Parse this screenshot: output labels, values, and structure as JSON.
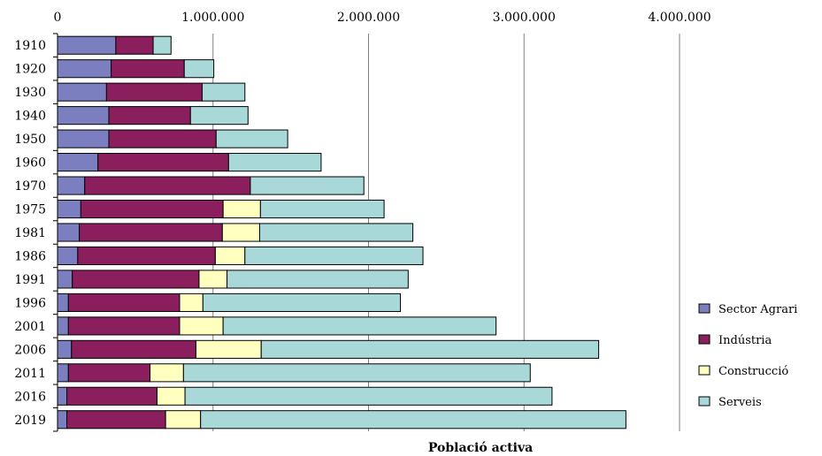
{
  "chart_data": {
    "type": "bar",
    "orientation": "horizontal",
    "stacked": true,
    "xlabel": "Població activa",
    "ylabel": "",
    "title": "",
    "xlim": [
      0,
      4000000
    ],
    "xticks": [
      0,
      1000000,
      2000000,
      3000000,
      4000000
    ],
    "xtick_labels": [
      "0",
      "1.000.000",
      "2.000.000",
      "3.000.000",
      "4.000.000"
    ],
    "categories": [
      "1910",
      "1920",
      "1930",
      "1940",
      "1950",
      "1960",
      "1970",
      "1975",
      "1981",
      "1986",
      "1991",
      "1996",
      "2001",
      "2006",
      "2011",
      "2016",
      "2019"
    ],
    "series": [
      {
        "name": "Sector Agrari",
        "color": "#7b7fbf",
        "values": [
          375000,
          345000,
          315000,
          330000,
          330000,
          260000,
          175000,
          150000,
          140000,
          130000,
          95000,
          70000,
          70000,
          90000,
          70000,
          60000,
          60000
        ]
      },
      {
        "name": "Indústria",
        "color": "#8b1f5e",
        "values": [
          240000,
          470000,
          615000,
          525000,
          690000,
          840000,
          1065000,
          915000,
          920000,
          885000,
          815000,
          715000,
          715000,
          800000,
          525000,
          580000,
          635000
        ]
      },
      {
        "name": "Construcció",
        "color": "#ffffc0",
        "values": [
          0,
          0,
          0,
          0,
          0,
          0,
          0,
          240000,
          240000,
          190000,
          180000,
          150000,
          280000,
          420000,
          215000,
          180000,
          225000
        ]
      },
      {
        "name": "Serveis",
        "color": "#a8d8d8",
        "values": [
          115000,
          190000,
          275000,
          370000,
          460000,
          595000,
          730000,
          795000,
          985000,
          1145000,
          1165000,
          1270000,
          1755000,
          2170000,
          2230000,
          2360000,
          2735000
        ]
      }
    ],
    "grid": "vertical",
    "legend_position": "right"
  }
}
